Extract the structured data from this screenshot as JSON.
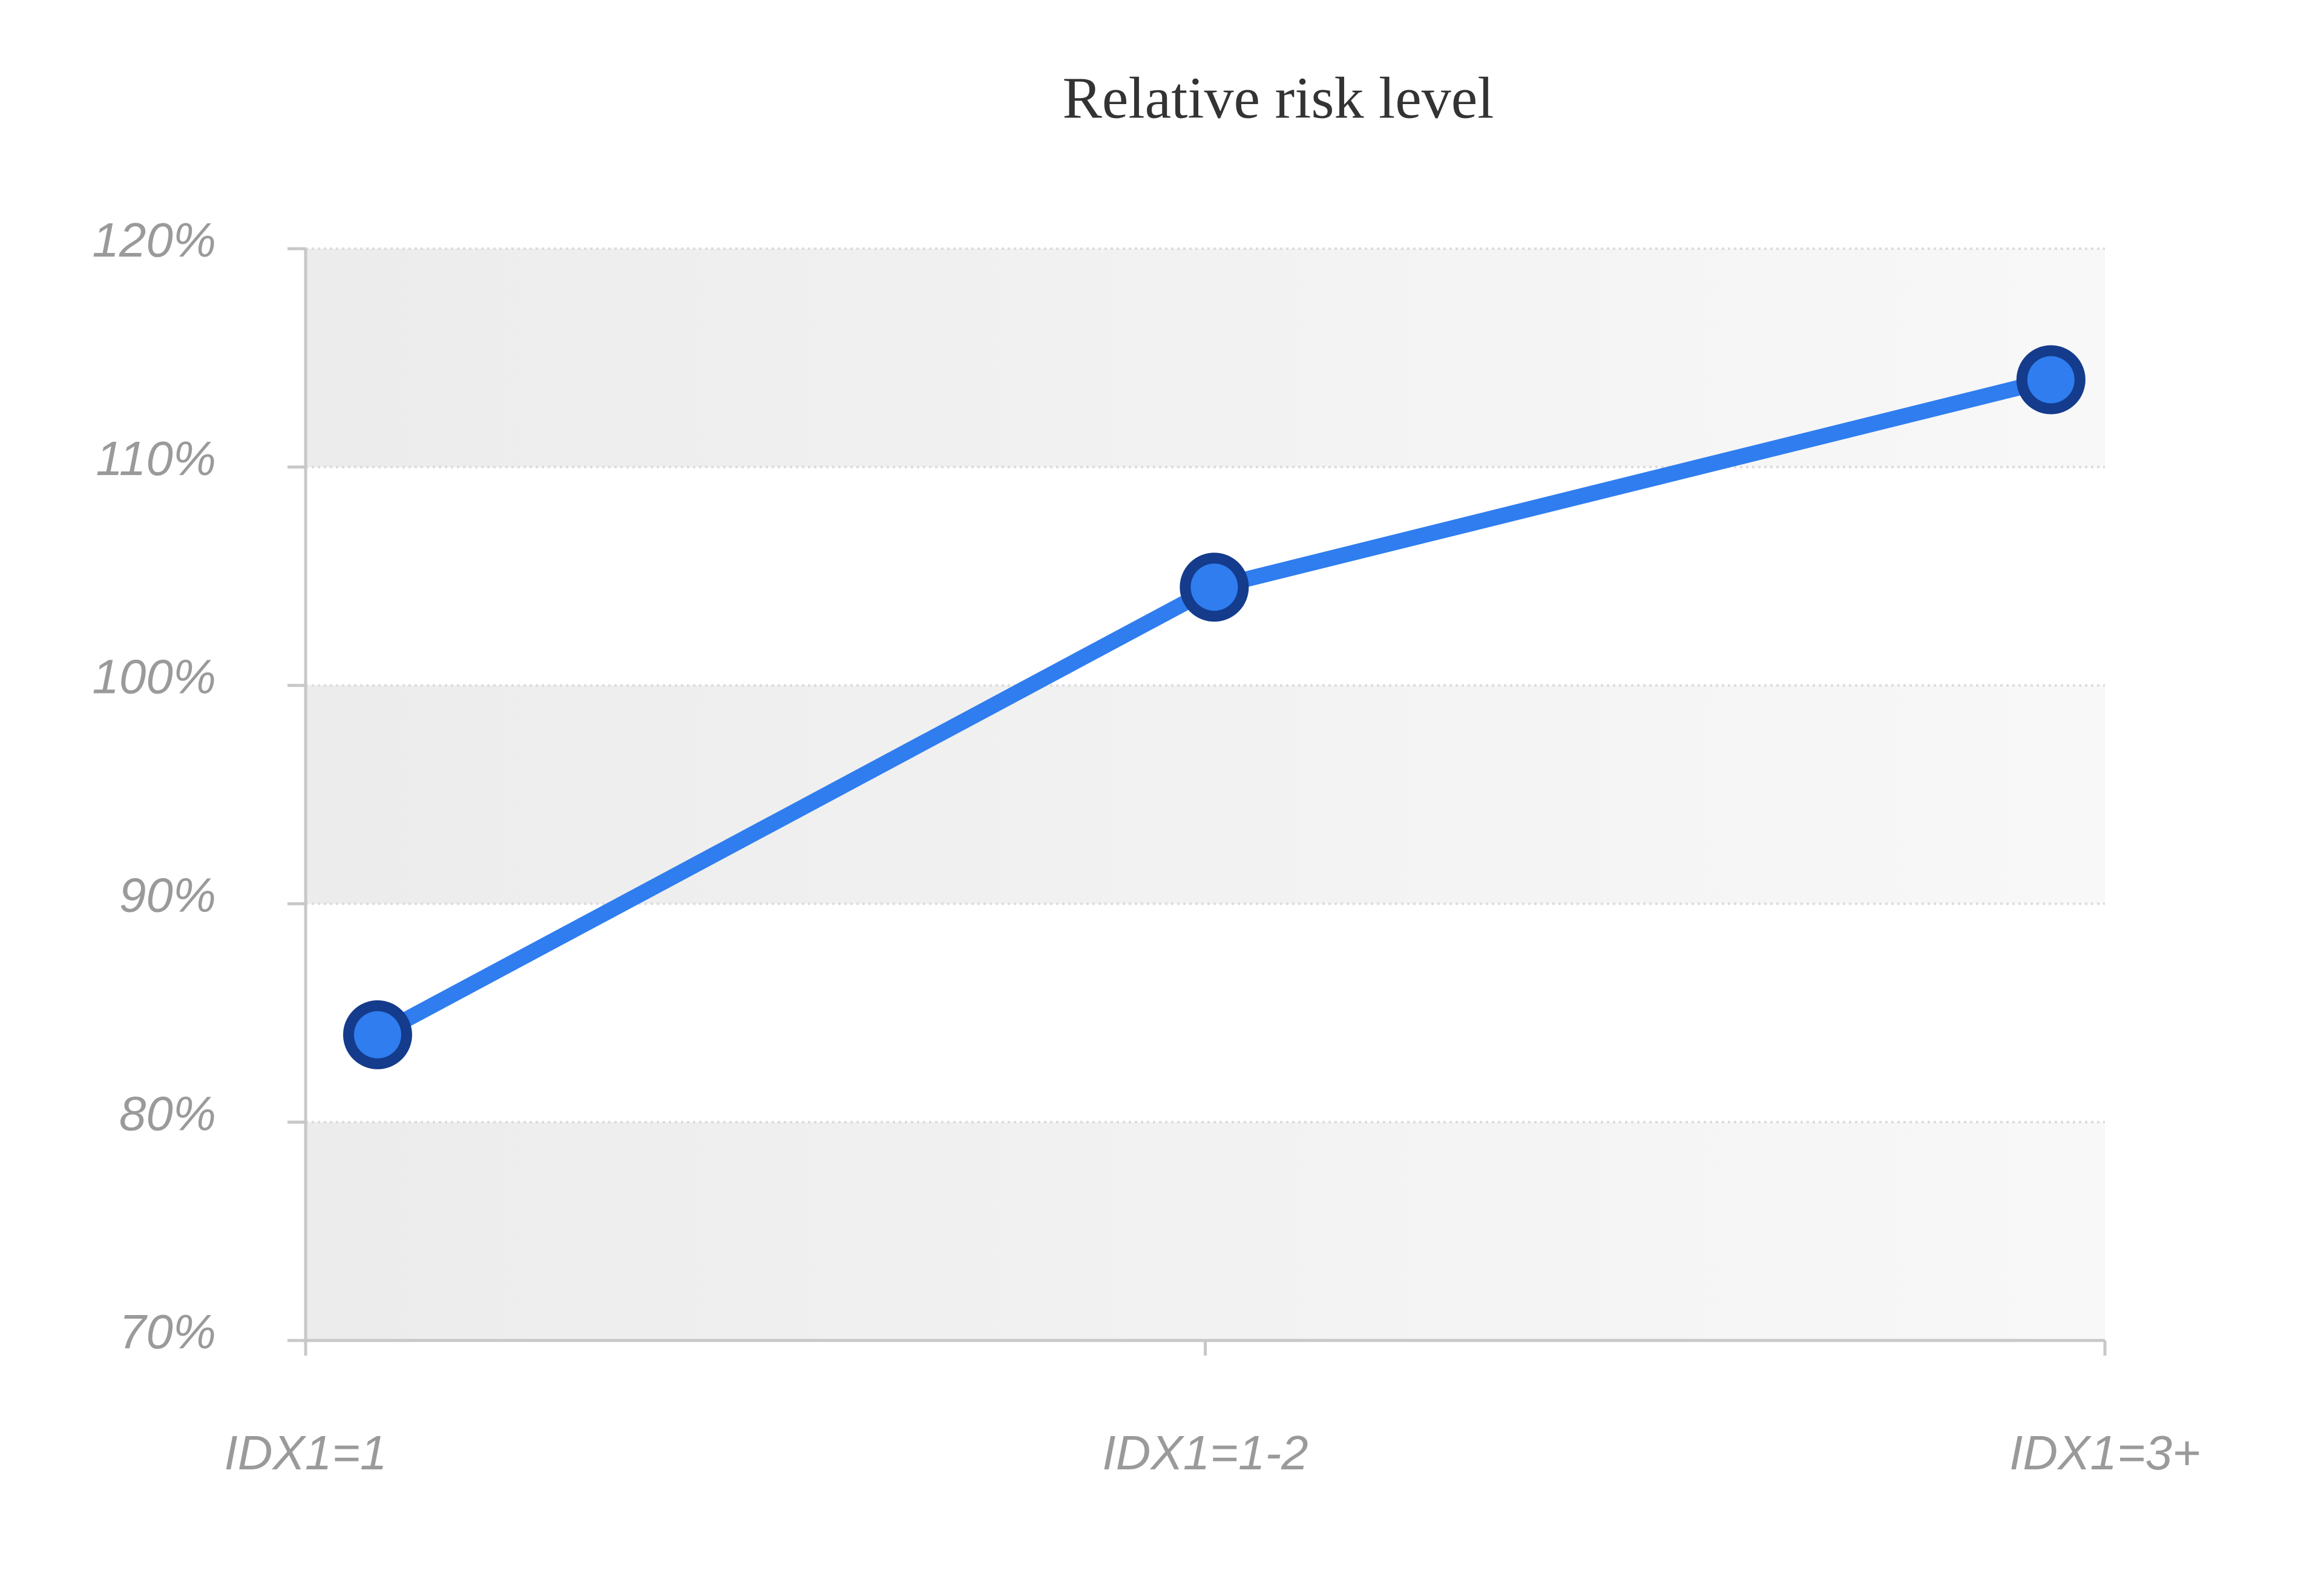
{
  "chart_data": {
    "type": "line",
    "title": "Relative risk level",
    "categories": [
      "IDX1=1",
      "IDX1=1-2",
      "IDX1=3+"
    ],
    "series": [
      {
        "name": "Relative risk level",
        "color": "#2f7def",
        "marker_edge": "#143b8c",
        "values": [
          84,
          104.5,
          114
        ]
      }
    ],
    "ylim": [
      70,
      120
    ],
    "yticks": [
      {
        "value": 70,
        "label": "70%"
      },
      {
        "value": 80,
        "label": "80%"
      },
      {
        "value": 90,
        "label": "90%"
      },
      {
        "value": 100,
        "label": "100%"
      },
      {
        "value": 110,
        "label": "110%"
      },
      {
        "value": 120,
        "label": "120%"
      }
    ],
    "grid": true
  }
}
